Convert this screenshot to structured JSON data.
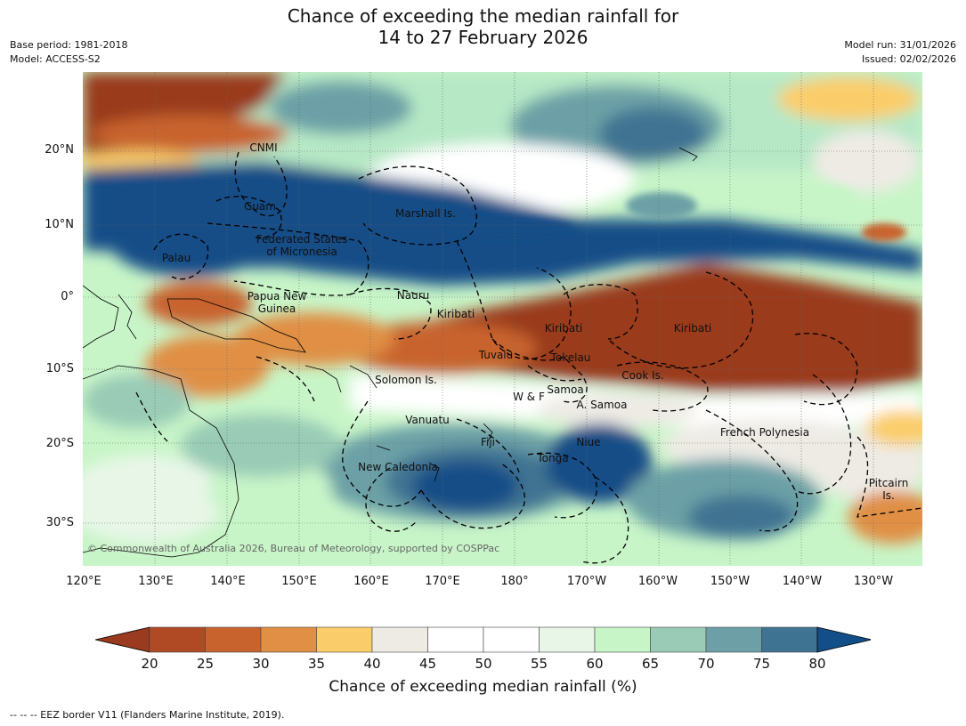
{
  "title": {
    "line1": "Chance of exceeding the median rainfall for",
    "line2": "14 to 27 February 2026"
  },
  "meta_left": {
    "base_period": "Base period: 1981-2018",
    "model": "Model: ACCESS-S2"
  },
  "meta_right": {
    "model_run": "Model run: 31/01/2026",
    "issued": "Issued: 02/02/2026"
  },
  "map": {
    "lat_labels": [
      "20°N",
      "10°N",
      "0°",
      "10°S",
      "20°S",
      "30°S"
    ],
    "lon_labels": [
      "120°E",
      "130°E",
      "140°E",
      "150°E",
      "160°E",
      "170°E",
      "180°",
      "170°W",
      "160°W",
      "150°W",
      "140°W",
      "130°W"
    ],
    "places": {
      "cnmi": "CNMI",
      "guam": "Guam",
      "marshall": "Marshall Is.",
      "fsm_line1": "Federated States",
      "fsm_line2": "of Micronesia",
      "palau": "Palau",
      "png_line1": "Papua New",
      "png_line2": "Guinea",
      "nauru": "Nauru",
      "kiribati_w": "Kiribati",
      "kiribati_c": "Kiribati",
      "kiribati_e": "Kiribati",
      "tuvalu": "Tuvalu",
      "tokelau": "Tokelau",
      "cook": "Cook Is.",
      "solomon": "Solomon Is.",
      "wf": "W & F",
      "samoa": "Samoa",
      "asamoa": "A. Samoa",
      "vanuatu": "Vanuatu",
      "fiji": "Fiji",
      "niue": "Niue",
      "tonga": "Tonga",
      "newcal": "New Caledonia",
      "frenchpoly": "French Polynesia",
      "pitcairn_line1": "Pitcairn",
      "pitcairn_line2": "Is."
    },
    "copyright": "© Commonwealth of Australia 2026, Bureau of Meteorology, supported by COSPPac"
  },
  "colorbar": {
    "ticks": [
      "20",
      "25",
      "30",
      "35",
      "40",
      "45",
      "50",
      "55",
      "60",
      "65",
      "70",
      "75",
      "80"
    ],
    "colors": [
      "#9a3a1e",
      "#b04a25",
      "#c8632e",
      "#e08f45",
      "#fbcd6a",
      "#eeebe5",
      "#ffffff",
      "#ffffff",
      "#e8f6e8",
      "#c8f5c8",
      "#99cbb6",
      "#6ca0a6",
      "#3f7392",
      "#124e87"
    ],
    "label": "Chance of exceeding median rainfall (%)"
  },
  "footer": "--  --  -- EEZ border V11 (Flanders Marine Institute, 2019)."
}
